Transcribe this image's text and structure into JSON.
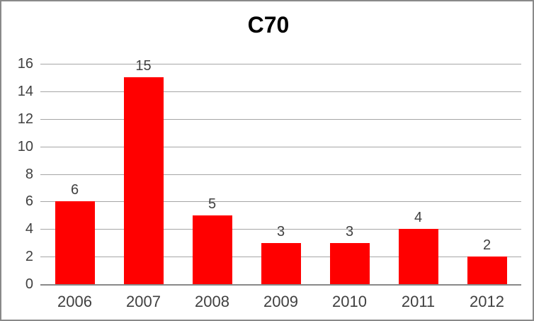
{
  "chart_data": {
    "type": "bar",
    "title": "C70",
    "categories": [
      "2006",
      "2007",
      "2008",
      "2009",
      "2010",
      "2011",
      "2012"
    ],
    "values": [
      6,
      15,
      5,
      3,
      3,
      4,
      2
    ],
    "data_labels_shown": true,
    "xlabel": "",
    "ylabel": "",
    "ylim": [
      0,
      16
    ],
    "yticks": [
      0,
      2,
      4,
      6,
      8,
      10,
      12,
      14,
      16
    ],
    "grid": "horizontal",
    "legend": "none",
    "colors": {
      "bar": "#FF0000",
      "gridline": "#A6A6A6",
      "axis_line": "#898989",
      "tick_label": "#404040",
      "data_label": "#404040",
      "title": "#000000",
      "frame_border": "#898989",
      "background": "#FFFFFF"
    }
  }
}
